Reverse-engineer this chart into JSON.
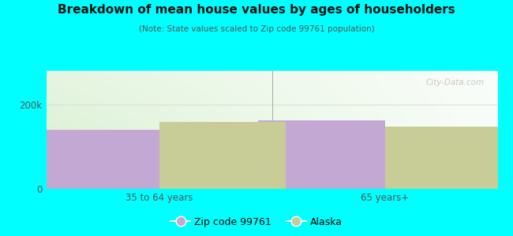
{
  "title": "Breakdown of mean house values by ages of householders",
  "subtitle": "(Note: State values scaled to Zip code 99761 population)",
  "categories": [
    "35 to 64 years",
    "65 years+"
  ],
  "zip_values": [
    140000,
    163000
  ],
  "alaska_values": [
    158000,
    148000
  ],
  "zip_color": "#c4a8d4",
  "alaska_color": "#c8cc96",
  "ylim": [
    0,
    280000
  ],
  "ytick_vals": [
    0,
    200000
  ],
  "ytick_labels": [
    "0",
    "200k"
  ],
  "background_color": "#00ffff",
  "legend_zip_label": "Zip code 99761",
  "legend_alaska_label": "Alaska",
  "bar_width": 0.28,
  "group_positions": [
    0.25,
    0.75
  ],
  "watermark": "City-Data.com",
  "grid_line_color": "#dddddd",
  "divider_color": "#aaaaaa",
  "tick_label_color": "#555555",
  "title_color": "#111111",
  "subtitle_color": "#555555"
}
